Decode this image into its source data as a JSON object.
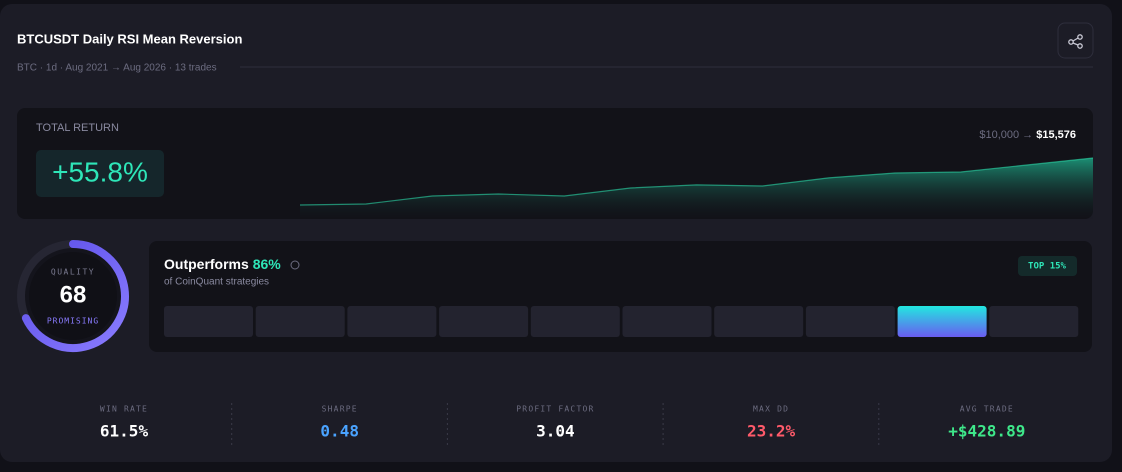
{
  "header": {
    "title": "BTCUSDT Daily RSI Mean Reversion",
    "subtitle": "BTC · 1d · Aug 2021 → Aug 2026 · 13 trades"
  },
  "total_return": {
    "label": "TOTAL RETURN",
    "value": "+55.8%",
    "start": "$10,000",
    "arrow": "→",
    "end": "$15,576",
    "equity_curve": {
      "values": [
        10000,
        10120,
        11070,
        11300,
        11070,
        12020,
        12380,
        12260,
        13210,
        13800,
        13920,
        14750,
        15576
      ]
    }
  },
  "quality": {
    "label": "QUALITY",
    "score": 68,
    "rating": "PROMISING"
  },
  "outperforms": {
    "label": "Outperforms",
    "value": "86%",
    "caption": "of CoinQuant strategies",
    "badge": "TOP 15%"
  },
  "stats": [
    {
      "label": "WIN RATE",
      "value": "61.5%"
    },
    {
      "label": "SHARPE",
      "value": "0.48"
    },
    {
      "label": "PROFIT FACTOR",
      "value": "3.04"
    },
    {
      "label": "MAX DD",
      "value": "23.2%"
    },
    {
      "label": "AVG TRADE",
      "value": "+$428.89"
    }
  ]
}
